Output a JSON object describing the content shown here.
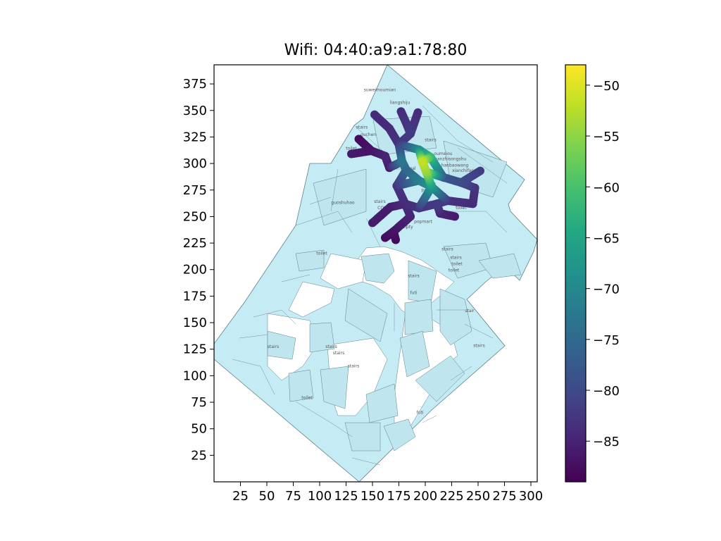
{
  "chart_data": {
    "type": "scatter",
    "title": "Wifi: 04:40:a9:a1:78:80",
    "xlabel": "",
    "ylabel": "",
    "xlim": [
      0,
      306
    ],
    "ylim": [
      0,
      393
    ],
    "x_ticks": [
      25,
      50,
      75,
      100,
      125,
      150,
      175,
      200,
      225,
      250,
      275,
      300
    ],
    "y_ticks": [
      25,
      50,
      75,
      100,
      125,
      150,
      175,
      200,
      225,
      250,
      275,
      300,
      325,
      350,
      375
    ],
    "grid": false,
    "colorbar": {
      "colormap": "viridis",
      "range": [
        -89,
        -48
      ],
      "ticks": [
        -50,
        -55,
        -60,
        -65,
        -70,
        -75,
        -80,
        -85
      ]
    },
    "colors": {
      "floor_fill": "#c5ebf5",
      "floor_edge": "#5f7f8a",
      "label": "#555555"
    },
    "map_labels": [
      {
        "text": "suweimoumian",
        "x": 157,
        "y": 368
      },
      {
        "text": "liangshiju",
        "x": 176,
        "y": 356
      },
      {
        "text": "stairs",
        "x": 140,
        "y": 333
      },
      {
        "text": "quchen",
        "x": 146,
        "y": 326
      },
      {
        "text": "toilet",
        "x": 130,
        "y": 313
      },
      {
        "text": "stairs",
        "x": 205,
        "y": 321
      },
      {
        "text": "oumeiou",
        "x": 217,
        "y": 308
      },
      {
        "text": "sanzhisongshu",
        "x": 224,
        "y": 303
      },
      {
        "text": "hanbaowang",
        "x": 228,
        "y": 297
      },
      {
        "text": "xianchifang",
        "x": 237,
        "y": 292
      },
      {
        "text": "gal",
        "x": 188,
        "y": 294
      },
      {
        "text": "CH",
        "x": 207,
        "y": 279
      },
      {
        "text": "guota",
        "x": 238,
        "y": 281
      },
      {
        "text": "pap",
        "x": 200,
        "y": 274
      },
      {
        "text": "guoshuhao",
        "x": 122,
        "y": 262
      },
      {
        "text": "stairs",
        "x": 157,
        "y": 263
      },
      {
        "text": "COSME",
        "x": 162,
        "y": 257
      },
      {
        "text": "toilet",
        "x": 234,
        "y": 257
      },
      {
        "text": "lalalda",
        "x": 225,
        "y": 250
      },
      {
        "text": "popmart",
        "x": 198,
        "y": 244
      },
      {
        "text": "empty",
        "x": 182,
        "y": 239
      },
      {
        "text": "stairs",
        "x": 221,
        "y": 218
      },
      {
        "text": "stairs",
        "x": 229,
        "y": 210
      },
      {
        "text": "toilet",
        "x": 230,
        "y": 204
      },
      {
        "text": "toilet",
        "x": 227,
        "y": 198
      },
      {
        "text": "toilet",
        "x": 102,
        "y": 214
      },
      {
        "text": "stairs",
        "x": 189,
        "y": 193
      },
      {
        "text": "futi",
        "x": 189,
        "y": 177
      },
      {
        "text": "stair",
        "x": 242,
        "y": 160
      },
      {
        "text": "stairs",
        "x": 56,
        "y": 126
      },
      {
        "text": "stairs",
        "x": 111,
        "y": 126
      },
      {
        "text": "stairs",
        "x": 118,
        "y": 120
      },
      {
        "text": "stairs",
        "x": 251,
        "y": 127
      },
      {
        "text": "stairs",
        "x": 132,
        "y": 108
      },
      {
        "text": "toilet",
        "x": 88,
        "y": 78
      },
      {
        "text": "futi",
        "x": 195,
        "y": 64
      }
    ],
    "path_nodes": [
      {
        "id": "A",
        "x": 152,
        "y": 346,
        "v": -84
      },
      {
        "id": "B",
        "x": 166,
        "y": 333,
        "v": -84
      },
      {
        "id": "C",
        "x": 175,
        "y": 318,
        "v": -83
      },
      {
        "id": "D",
        "x": 177,
        "y": 349,
        "v": -84
      },
      {
        "id": "E",
        "x": 182,
        "y": 338,
        "v": -83
      },
      {
        "id": "F",
        "x": 193,
        "y": 348,
        "v": -84
      },
      {
        "id": "G",
        "x": 186,
        "y": 328,
        "v": -82
      },
      {
        "id": "H",
        "x": 194,
        "y": 313,
        "v": -70
      },
      {
        "id": "I",
        "x": 205,
        "y": 306,
        "v": -62
      },
      {
        "id": "J",
        "x": 197,
        "y": 302,
        "v": -52
      },
      {
        "id": "K",
        "x": 201,
        "y": 292,
        "v": -55
      },
      {
        "id": "L",
        "x": 206,
        "y": 278,
        "v": -68
      },
      {
        "id": "M",
        "x": 194,
        "y": 284,
        "v": -72
      },
      {
        "id": "N",
        "x": 182,
        "y": 294,
        "v": -76
      },
      {
        "id": "O",
        "x": 178,
        "y": 302,
        "v": -73
      },
      {
        "id": "P",
        "x": 173,
        "y": 279,
        "v": -83
      },
      {
        "id": "Q",
        "x": 166,
        "y": 296,
        "v": -86
      },
      {
        "id": "R",
        "x": 149,
        "y": 312,
        "v": -87
      },
      {
        "id": "S",
        "x": 137,
        "y": 323,
        "v": -88
      },
      {
        "id": "T",
        "x": 130,
        "y": 309,
        "v": -86
      },
      {
        "id": "U",
        "x": 162,
        "y": 307,
        "v": -85
      },
      {
        "id": "V",
        "x": 217,
        "y": 287,
        "v": -78
      },
      {
        "id": "W",
        "x": 234,
        "y": 282,
        "v": -80
      },
      {
        "id": "X",
        "x": 252,
        "y": 293,
        "v": -82
      },
      {
        "id": "Y",
        "x": 247,
        "y": 277,
        "v": -83
      },
      {
        "id": "Z",
        "x": 245,
        "y": 262,
        "v": -84
      },
      {
        "id": "AA",
        "x": 221,
        "y": 265,
        "v": -83
      },
      {
        "id": "AB",
        "x": 211,
        "y": 262,
        "v": -82
      },
      {
        "id": "AC",
        "x": 194,
        "y": 258,
        "v": -83
      },
      {
        "id": "AD",
        "x": 181,
        "y": 262,
        "v": -84
      },
      {
        "id": "AE",
        "x": 167,
        "y": 259,
        "v": -86
      },
      {
        "id": "AF",
        "x": 150,
        "y": 244,
        "v": -86
      },
      {
        "id": "AG",
        "x": 170,
        "y": 236,
        "v": -87
      },
      {
        "id": "AH",
        "x": 172,
        "y": 228,
        "v": -88
      },
      {
        "id": "AI",
        "x": 162,
        "y": 230,
        "v": -88
      },
      {
        "id": "AJ",
        "x": 214,
        "y": 253,
        "v": -85
      },
      {
        "id": "AK",
        "x": 228,
        "y": 250,
        "v": -86
      },
      {
        "id": "AL",
        "x": 186,
        "y": 250,
        "v": -85
      }
    ],
    "path_segments": [
      [
        "A",
        "B"
      ],
      [
        "B",
        "C"
      ],
      [
        "D",
        "E"
      ],
      [
        "E",
        "G"
      ],
      [
        "F",
        "G"
      ],
      [
        "G",
        "C"
      ],
      [
        "C",
        "H"
      ],
      [
        "H",
        "I"
      ],
      [
        "I",
        "J"
      ],
      [
        "J",
        "K"
      ],
      [
        "K",
        "L"
      ],
      [
        "L",
        "M"
      ],
      [
        "M",
        "N"
      ],
      [
        "N",
        "O"
      ],
      [
        "O",
        "C"
      ],
      [
        "H",
        "J"
      ],
      [
        "N",
        "P"
      ],
      [
        "O",
        "Q"
      ],
      [
        "Q",
        "U"
      ],
      [
        "U",
        "R"
      ],
      [
        "R",
        "S"
      ],
      [
        "R",
        "T"
      ],
      [
        "I",
        "V"
      ],
      [
        "K",
        "V"
      ],
      [
        "V",
        "W"
      ],
      [
        "W",
        "X"
      ],
      [
        "W",
        "Y"
      ],
      [
        "Y",
        "Z"
      ],
      [
        "L",
        "AA"
      ],
      [
        "AA",
        "Z"
      ],
      [
        "AA",
        "AB"
      ],
      [
        "AB",
        "AC"
      ],
      [
        "AC",
        "AD"
      ],
      [
        "AD",
        "AE"
      ],
      [
        "P",
        "AD"
      ],
      [
        "AE",
        "AF"
      ],
      [
        "AD",
        "AL"
      ],
      [
        "AL",
        "AG"
      ],
      [
        "AG",
        "AH"
      ],
      [
        "AG",
        "AI"
      ],
      [
        "AB",
        "AJ"
      ],
      [
        "AJ",
        "AK"
      ],
      [
        "M",
        "P"
      ],
      [
        "AC",
        "L"
      ]
    ]
  }
}
